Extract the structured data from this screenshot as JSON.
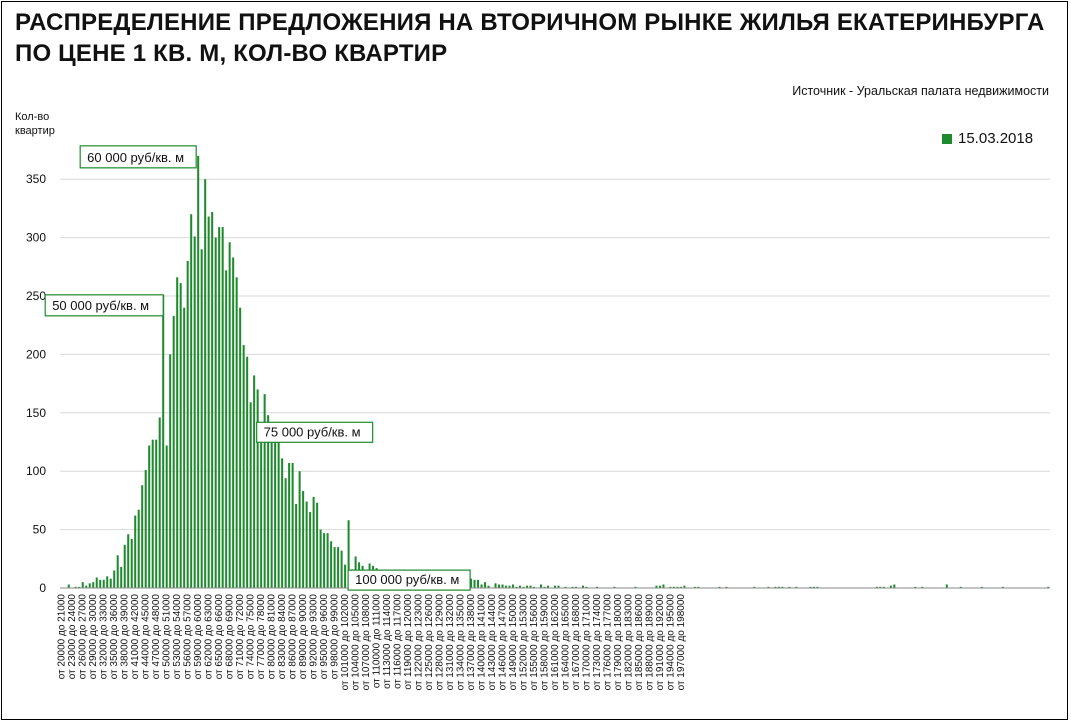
{
  "chart_data": {
    "type": "bar",
    "title": "РАСПРЕДЕЛЕНИЕ ПРЕДЛОЖЕНИЯ НА ВТОРИЧНОМ РЫНКЕ ЖИЛЬЯ ЕКАТЕРИНБУРГА",
    "subtitle": "ПО ЦЕНЕ 1 КВ. М, КОЛ-ВО КВАРТИР",
    "source": "Источник - Уральская палата недвижимости",
    "ylabel": "Кол-во квартир",
    "xlabel": "",
    "ylim": [
      0,
      375
    ],
    "yticks": [
      0,
      50,
      100,
      150,
      200,
      250,
      300,
      350
    ],
    "grid": true,
    "legend_position": "top-right",
    "series": [
      {
        "name": "15.03.2018",
        "color": "#1e8a2e",
        "values": [
          0,
          0,
          3,
          0,
          1,
          1,
          5,
          2,
          4,
          5,
          9,
          7,
          7,
          10,
          8,
          15,
          28,
          18,
          37,
          46,
          42,
          62,
          67,
          88,
          101,
          122,
          127,
          127,
          146,
          251,
          122,
          200,
          233,
          266,
          261,
          240,
          280,
          320,
          301,
          370,
          290,
          350,
          318,
          322,
          300,
          309,
          309,
          272,
          296,
          283,
          266,
          240,
          208,
          198,
          159,
          182,
          170,
          139,
          166,
          148,
          133,
          127,
          140,
          111,
          94,
          107,
          107,
          72,
          100,
          83,
          74,
          65,
          78,
          73,
          50,
          47,
          47,
          40,
          35,
          35,
          32,
          20,
          58,
          16,
          27,
          22,
          19,
          14,
          21,
          19,
          17,
          12,
          12,
          12,
          7,
          8,
          10,
          9,
          8,
          6,
          7,
          9,
          2,
          3,
          6,
          2,
          6,
          4,
          6,
          3,
          6,
          3,
          3,
          9,
          4,
          3,
          3,
          8,
          7,
          7,
          3,
          5,
          2,
          0,
          4,
          3,
          3,
          2,
          2,
          3,
          1,
          2,
          1,
          2,
          2,
          1,
          0,
          3,
          1,
          2,
          0,
          2,
          2,
          0,
          1,
          0,
          1,
          1,
          0,
          2,
          1,
          0,
          0,
          1,
          0,
          0,
          0,
          0,
          1,
          0,
          0,
          0,
          0,
          0,
          1,
          0,
          0,
          0,
          0,
          0,
          2,
          2,
          3,
          0,
          1,
          1,
          1,
          1,
          2,
          0,
          0,
          1,
          1,
          0,
          0,
          0,
          0,
          0,
          1,
          0,
          1,
          0,
          0,
          0,
          0,
          0,
          0,
          0,
          1,
          0,
          0,
          0,
          1,
          0,
          1,
          1,
          1,
          0,
          1,
          0,
          1,
          0,
          0,
          0,
          1,
          1,
          1,
          0,
          0,
          0,
          0,
          0,
          0,
          0,
          0,
          0,
          0,
          0,
          0,
          0,
          0,
          0,
          0,
          1,
          1,
          1,
          0,
          2,
          3,
          0,
          0,
          0,
          0,
          0,
          1,
          0,
          1,
          0,
          0,
          0,
          0,
          0,
          0,
          3,
          0,
          0,
          0,
          1,
          0,
          0,
          0,
          0,
          0,
          1,
          0,
          0,
          0,
          0,
          0,
          1,
          0,
          0,
          0,
          0,
          0,
          0,
          0,
          0,
          0,
          0,
          0,
          0,
          1
        ]
      }
    ],
    "x_tick_labels": [
      "от 20000 до 21000",
      "от 23000 до 24000",
      "от 26000 до 27000",
      "от 29000 до 30000",
      "от 32000 до 33000",
      "от 35000 до 36000",
      "от 38000 до 39000",
      "от 41000 до 42000",
      "от 44000 до 45000",
      "от 47000 до 48000",
      "от 50000 до 51000",
      "от 53000 до 54000",
      "от 56000 до 57000",
      "от 59000 до 60000",
      "от 62000 до 63000",
      "от 65000 до 66000",
      "от 68000 до 69000",
      "от 71000 до 72000",
      "от 74000 до 75000",
      "от 77000 до 78000",
      "от 80000 до 81000",
      "от 83000 до 84000",
      "от 86000 до 87000",
      "от 89000 до 90000",
      "от 92000 до 93000",
      "от 95000 до 96000",
      "от 98000 до 99000",
      "от 101000 до 102000",
      "от 104000 до 105000",
      "от 107000 до 108000",
      "от 110000 до 111000",
      "от 113000 до 114000",
      "от 116000 до 117000",
      "от 119000 до 120000",
      "от 122000 до 123000",
      "от 125000 до 126000",
      "от 128000 до 129000",
      "от 131000 до 132000",
      "от 134000 до 135000",
      "от 137000 до 138000",
      "от 140000 до 141000",
      "от 143000 до 144000",
      "от 146000 до 147000",
      "от 149000 до 150000",
      "от 152000 до 153000",
      "от 155000 до 156000",
      "от 158000 до 159000",
      "от 161000 до 162000",
      "от 164000 до 165000",
      "от 167000 до 168000",
      "от 170000 до 171000",
      "от 173000 до 174000",
      "от 176000 до 177000",
      "от 179000 до 180000",
      "от 182000 до 183000",
      "от 185000 до 186000",
      "от 188000 до 189000",
      "от 191000 до 192000",
      "от 194000 до 195000",
      "от 197000 до 198000"
    ],
    "annotations": [
      {
        "text": "50 000 руб/кв. м",
        "bar_index": 29
      },
      {
        "text": "60 000 руб/кв. м",
        "bar_index": 39
      },
      {
        "text": "75 000 руб/кв. м",
        "bar_index": 54
      },
      {
        "text": "100 000 руб/кв. м",
        "bar_index": 79
      }
    ]
  }
}
